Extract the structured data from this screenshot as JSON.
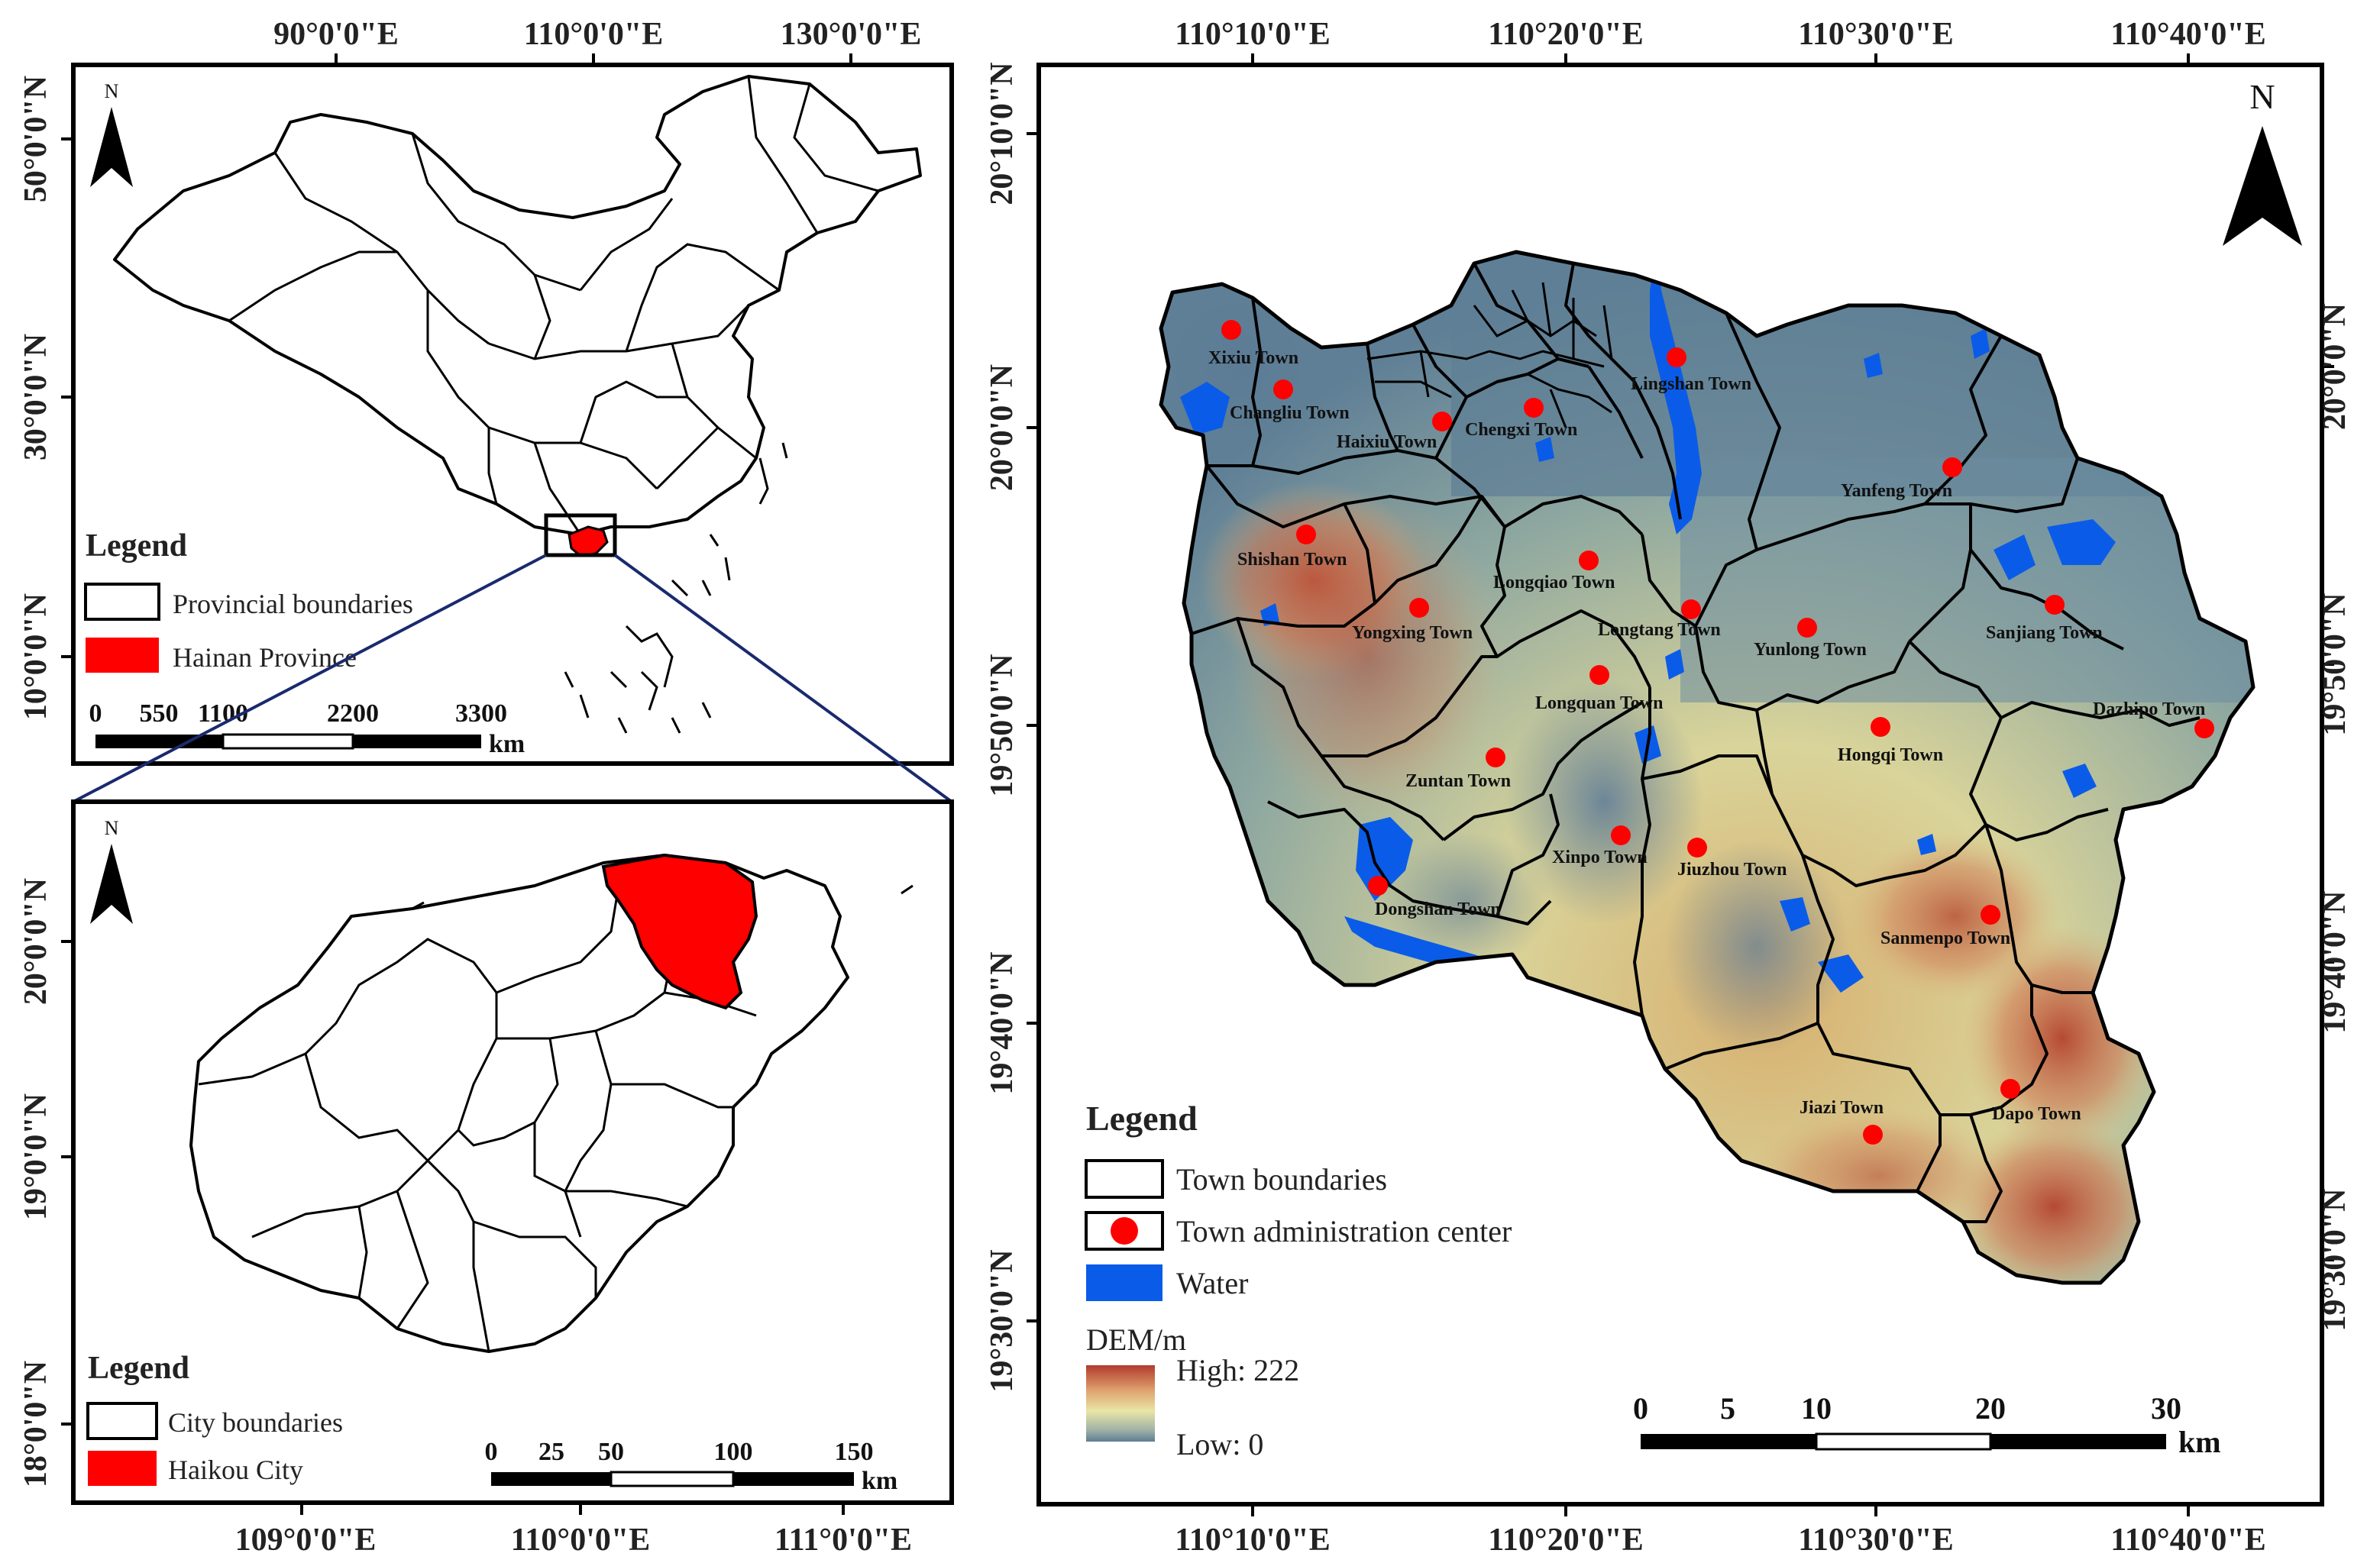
{
  "panel_china": {
    "top_coords": [
      "90°0'0\"E",
      "110°0'0\"E",
      "130°0'0\"E"
    ],
    "left_coords": [
      "50°0'0\"N",
      "30°0'0\"N",
      "10°0'0\"N"
    ],
    "north": "N",
    "legend_title": "Legend",
    "legend_items": [
      "Provincial boundaries",
      "Hainan Province"
    ],
    "scale_labels": [
      "0",
      "550",
      "1100",
      "2200",
      "3300"
    ],
    "scale_unit": "km",
    "highlight_color": "#ff0000"
  },
  "panel_hainan": {
    "left_coords": [
      "20°0'0\"N",
      "19°0'0\"N",
      "18°0'0\"N"
    ],
    "bottom_coords": [
      "109°0'0\"E",
      "110°0'0\"E",
      "111°0'0\"E"
    ],
    "north": "N",
    "legend_title": "Legend",
    "legend_items": [
      "City boundaries",
      "Haikou City"
    ],
    "scale_labels": [
      "0",
      "25",
      "50",
      "100",
      "150"
    ],
    "scale_unit": "km"
  },
  "panel_haikou": {
    "top_coords": [
      "110°10'0\"E",
      "110°20'0\"E",
      "110°30'0\"E",
      "110°40'0\"E"
    ],
    "bottom_coords": [
      "110°10'0\"E",
      "110°20'0\"E",
      "110°30'0\"E",
      "110°40'0\"E"
    ],
    "left_coords": [
      "20°10'0\"N",
      "20°0'0\"N",
      "19°50'0\"N",
      "19°40'0\"N",
      "19°30'0\"N"
    ],
    "right_coords": [
      "20°0'0\"N",
      "19°50'0\"N",
      "19°40'0\"N",
      "19°30'0\"N"
    ],
    "north": "N",
    "towns": [
      "Xixiu Town",
      "Changliu Town",
      "Haixiu Town",
      "Chengxi Town",
      "Lingshan Town",
      "Yanfeng Town",
      "Shishan Town",
      "Yongxing Town",
      "Longqiao Town",
      "Longtang Town",
      "Yunlong Town",
      "Sanjiang Town",
      "Longquan Town",
      "Dazhipo Town",
      "Hongqi Town",
      "Zuntan Town",
      "Xinpo Town",
      "Jiuzhou Town",
      "Dongshan Town",
      "Sanmenpo Town",
      "Jiazi Town",
      "Dapo Town"
    ],
    "legend_title": "Legend",
    "legend_items": [
      "Town boundaries",
      "Town administration center",
      "Water"
    ],
    "dem_title": "DEM/m",
    "dem_high": "High: 222",
    "dem_low": "Low: 0",
    "scale_labels": [
      "0",
      "5",
      "10",
      "20",
      "30"
    ],
    "scale_unit": "km",
    "water_color": "#0a5ce8",
    "center_color": "#ff0000"
  }
}
